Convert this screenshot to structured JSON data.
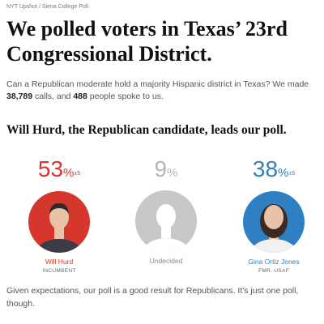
{
  "header": {
    "kicker": "NYT Upshot / Siena College Poll",
    "title": "We polled voters in Texas’ 23rd Congressional District."
  },
  "intro": {
    "before": "Can a Republican moderate hold a majority Hispanic district in Texas? We made ",
    "calls": "38,789",
    "middle": " calls, and ",
    "people": "488",
    "after": " people spoke to us."
  },
  "subhead": "Will Hurd, the Republican candidate, leads our poll.",
  "candidates": [
    {
      "pct": 53,
      "sign": "%",
      "margin": "±5",
      "name": "Will Hurd",
      "role": "INCUMBENT",
      "color": "#d6372c",
      "photo_bg": "#d6372c"
    },
    {
      "pct": 9,
      "sign": "%",
      "name": "Undecided",
      "color": "#b5b5b5",
      "photo_bg": "#c8c8c8"
    },
    {
      "pct": 38,
      "sign": "%",
      "margin": "±5",
      "name": "Gina Ortiz Jones",
      "role": "FMR. USAF",
      "color": "#2f80c3",
      "photo_bg": "#2f80c3"
    }
  ],
  "footer": "Given expectations, our poll is a good result for Republicans. It's just one poll, though."
}
